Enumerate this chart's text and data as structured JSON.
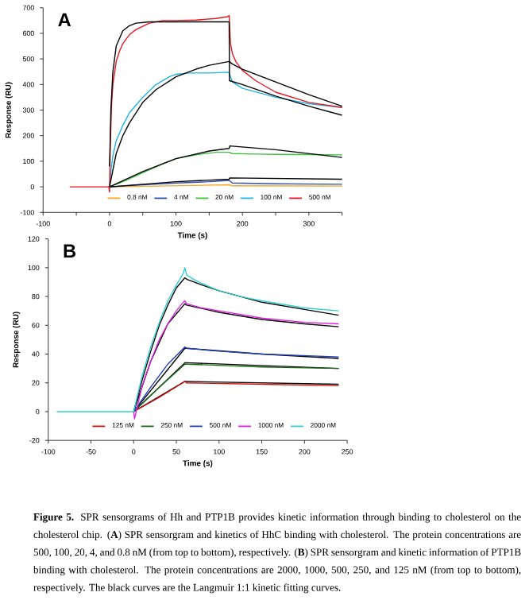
{
  "chart_data": [
    {
      "type": "line",
      "title": "A",
      "xlabel": "Time (s)",
      "ylabel": "Response (RU)",
      "xlim": [
        -100,
        350
      ],
      "ylim": [
        -100,
        700
      ],
      "xticks": [
        -100,
        {
          "value": -50,
          "label": null
        },
        0,
        {
          "value": 50,
          "label": null
        },
        100,
        {
          "value": 150,
          "label": null
        },
        200,
        {
          "value": 250,
          "label": null
        },
        300,
        {
          "value": 350,
          "label": null
        }
      ],
      "yticks": [
        -100,
        0,
        100,
        200,
        300,
        400,
        500,
        600,
        700
      ],
      "legend": "bottom",
      "series": [
        {
          "name": "0.8 nM",
          "color": "#f5a623",
          "x": [
            0,
            180,
            185,
            350
          ],
          "values": [
            0,
            8,
            4,
            3
          ]
        },
        {
          "name": "4 nM",
          "color": "#2f4fb0",
          "x": [
            0,
            50,
            100,
            150,
            180,
            185,
            250,
            350
          ],
          "values": [
            0,
            8,
            15,
            20,
            25,
            15,
            12,
            10
          ]
        },
        {
          "name": "20 nM",
          "color": "#3cc33c",
          "x": [
            0,
            20,
            50,
            80,
            100,
            130,
            160,
            180,
            185,
            220,
            250,
            300,
            350
          ],
          "values": [
            0,
            20,
            55,
            90,
            110,
            125,
            135,
            135,
            130,
            128,
            127,
            126,
            125
          ]
        },
        {
          "name": "100 nM",
          "color": "#1eb4e6",
          "x": [
            0,
            2,
            5,
            10,
            20,
            30,
            50,
            70,
            90,
            100,
            120,
            150,
            178,
            180,
            185,
            200,
            250,
            300,
            350
          ],
          "values": [
            0,
            60,
            120,
            180,
            240,
            290,
            350,
            400,
            430,
            440,
            445,
            445,
            448,
            445,
            410,
            385,
            350,
            325,
            310
          ]
        },
        {
          "name": "500 nM",
          "color": "#e8141e",
          "x": [
            -60,
            -1,
            0,
            1,
            3,
            5,
            10,
            15,
            20,
            30,
            40,
            60,
            80,
            100,
            130,
            160,
            178,
            180,
            182,
            185,
            190,
            200,
            220,
            250,
            300,
            350
          ],
          "values": [
            0,
            0,
            -20,
            150,
            320,
            400,
            490,
            530,
            560,
            595,
            615,
            640,
            650,
            650,
            652,
            658,
            665,
            670,
            560,
            520,
            490,
            455,
            415,
            370,
            330,
            310
          ]
        },
        {
          "color": "#000000",
          "x": [
            0,
            2,
            5,
            10,
            20,
            30,
            40,
            60,
            100,
            180,
            180.5,
            200,
            250,
            300,
            350
          ],
          "values": [
            80,
            300,
            450,
            550,
            610,
            630,
            640,
            645,
            645,
            645,
            415,
            400,
            355,
            315,
            280
          ]
        },
        {
          "color": "#000000",
          "x": [
            0,
            10,
            20,
            30,
            50,
            70,
            100,
            130,
            150,
            180,
            185,
            200,
            250,
            300,
            350
          ],
          "values": [
            0,
            130,
            200,
            250,
            330,
            380,
            430,
            460,
            475,
            490,
            480,
            460,
            410,
            360,
            315
          ]
        },
        {
          "color": "#000000",
          "x": [
            0,
            50,
            100,
            150,
            180,
            181,
            250,
            350
          ],
          "values": [
            0,
            60,
            110,
            140,
            150,
            160,
            145,
            115
          ]
        },
        {
          "color": "#000000",
          "x": [
            0,
            100,
            180,
            181,
            350
          ],
          "values": [
            0,
            20,
            30,
            35,
            30
          ]
        }
      ]
    },
    {
      "type": "line",
      "title": "B",
      "xlabel": "Time (s)",
      "ylabel": "Response (RU)",
      "xlim": [
        -100,
        250
      ],
      "ylim": [
        -20,
        120
      ],
      "xticks": [
        -100,
        -50,
        0,
        50,
        100,
        150,
        200,
        250
      ],
      "yticks": [
        -20,
        0,
        20,
        40,
        60,
        80,
        100,
        120
      ],
      "legend": "bottom",
      "series": [
        {
          "color": "#000000",
          "x": [
            0,
            10,
            20,
            30,
            40,
            50,
            60,
            62,
            80,
            100,
            150,
            200,
            240
          ],
          "values": [
            0,
            22,
            42,
            60,
            74,
            86,
            93,
            92,
            88,
            84,
            76,
            71,
            67
          ]
        },
        {
          "color": "#000000",
          "x": [
            0,
            20,
            40,
            60,
            62,
            100,
            150,
            200,
            240
          ],
          "values": [
            0,
            35,
            61,
            75,
            74,
            69,
            64,
            61,
            59
          ]
        },
        {
          "color": "#000000",
          "x": [
            0,
            60,
            62,
            150,
            240
          ],
          "values": [
            0,
            44,
            44,
            40,
            37
          ]
        },
        {
          "color": "#000000",
          "x": [
            0,
            60,
            240
          ],
          "values": [
            0,
            34,
            30
          ]
        },
        {
          "color": "#000000",
          "x": [
            0,
            60,
            240
          ],
          "values": [
            0,
            21,
            19
          ]
        },
        {
          "name": "125 nM",
          "color": "#d01010",
          "x": [
            0,
            30,
            60,
            62,
            150,
            240
          ],
          "values": [
            0,
            10,
            21,
            20,
            19,
            18
          ]
        },
        {
          "name": "250 nM",
          "color": "#1a6b1a",
          "x": [
            0,
            30,
            60,
            62,
            150,
            240
          ],
          "values": [
            0,
            17,
            33,
            33,
            31,
            30
          ]
        },
        {
          "name": "500 nM",
          "color": "#1f3fbf",
          "x": [
            0,
            20,
            40,
            60,
            62,
            100,
            150,
            240
          ],
          "values": [
            0,
            17,
            33,
            45,
            44,
            42,
            40,
            38
          ]
        },
        {
          "name": "1000 nM",
          "color": "#e020e0",
          "x": [
            0,
            1,
            10,
            20,
            30,
            40,
            50,
            58,
            60,
            62,
            80,
            100,
            150,
            200,
            240
          ],
          "values": [
            0,
            -5,
            18,
            35,
            50,
            61,
            70,
            76,
            77,
            75,
            72,
            70,
            65,
            62,
            61
          ]
        },
        {
          "name": "2000 nM",
          "color": "#30d0d0",
          "x": [
            -90,
            0,
            10,
            20,
            30,
            40,
            50,
            58,
            60,
            62,
            70,
            80,
            100,
            125,
            150,
            200,
            240
          ],
          "values": [
            0,
            0,
            25,
            45,
            62,
            77,
            88,
            96,
            100,
            95,
            92,
            89,
            84,
            80,
            77,
            72,
            70
          ]
        }
      ],
      "annotations": [
        "**Figure 5.** SPR sensorgrams of Hh and PTP1B provides kinetic information through binding to cholesterol on the cholesterol chip. (**A**) SPR sensorgram and kinetics of HhC binding with cholesterol. The protein concentrations are 500, 100, 20, 4, and 0.8 nM (from top to bottom), respectively. (**B**) SPR sensorgram and kinetic information of PTP1B binding with cholesterol. The protein concentrations are 2000, 1000, 500, 250, and 125 nM (from top to bottom), respectively. The black curves are the Langmuir 1:1 kinetic fitting curves."
      ]
    }
  ]
}
